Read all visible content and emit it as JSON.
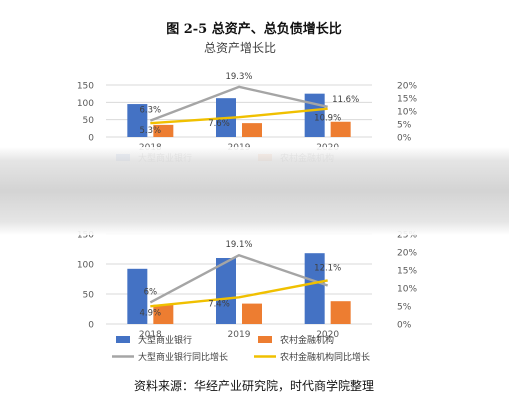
{
  "figure": {
    "caption": "图 2-5 总资产、总负债增长比",
    "source": "资料来源：华经产业研究院，时代商学院整理"
  },
  "colors": {
    "large_bank_bar": "#4472c4",
    "rural_bar": "#ed7d31",
    "large_bank_line": "#a5a5a5",
    "rural_line": "#f0c000"
  },
  "chart_data": [
    {
      "type": "bar",
      "title": "总资产增长比",
      "categories": [
        "2018",
        "2019",
        "2020"
      ],
      "y_left": {
        "lim": [
          0,
          150
        ],
        "ticks": [
          "0",
          "50",
          "100",
          "150"
        ]
      },
      "y_right": {
        "lim": [
          0,
          20
        ],
        "ticks": [
          "0%",
          "5%",
          "10%",
          "15%",
          "20%"
        ]
      },
      "series": [
        {
          "name": "大型商业银行",
          "kind": "bar",
          "axis": "left",
          "values": [
            95,
            112,
            125
          ]
        },
        {
          "name": "农村金融机构",
          "kind": "bar",
          "axis": "left",
          "values": [
            35,
            40,
            44
          ]
        },
        {
          "name": "大型商业银行同比增长",
          "kind": "line",
          "axis": "right",
          "values": [
            6.3,
            19.3,
            11.6
          ],
          "labels": [
            "6.3%",
            "19.3%",
            "11.6%"
          ]
        },
        {
          "name": "农村金融机构同比增长",
          "kind": "line",
          "axis": "right",
          "values": [
            5.3,
            7.6,
            10.9
          ],
          "labels": [
            "5.3%",
            "7.6%",
            "10.9%"
          ]
        }
      ],
      "legend": [
        "大型商业银行",
        "农村金融机构"
      ],
      "legend_position": "bottom"
    },
    {
      "type": "bar",
      "title": "",
      "categories": [
        "2018",
        "2019",
        "2020"
      ],
      "y_left": {
        "lim": [
          0,
          150
        ],
        "ticks": [
          "0",
          "50",
          "100",
          "150"
        ]
      },
      "y_right": {
        "lim": [
          0,
          25
        ],
        "ticks": [
          "0%",
          "5%",
          "10%",
          "15%",
          "20%",
          "25%"
        ]
      },
      "series": [
        {
          "name": "大型商业银行",
          "kind": "bar",
          "axis": "left",
          "values": [
            92,
            110,
            118
          ]
        },
        {
          "name": "农村金融机构",
          "kind": "bar",
          "axis": "left",
          "values": [
            32,
            34,
            38
          ]
        },
        {
          "name": "大型商业银行同比增长",
          "kind": "line",
          "axis": "right",
          "values": [
            6.0,
            19.1,
            10.7
          ],
          "labels": [
            "6%",
            "19.1%",
            ""
          ]
        },
        {
          "name": "农村金融机构同比增长",
          "kind": "line",
          "axis": "right",
          "values": [
            4.9,
            7.4,
            12.1
          ],
          "labels": [
            "4.9%",
            "7.4%",
            "12.1%"
          ]
        }
      ],
      "legend": [
        "大型商业银行",
        "农村金融机构",
        "大型商业银行同比增长",
        "农村金融机构同比增长"
      ],
      "legend_position": "bottom"
    }
  ]
}
